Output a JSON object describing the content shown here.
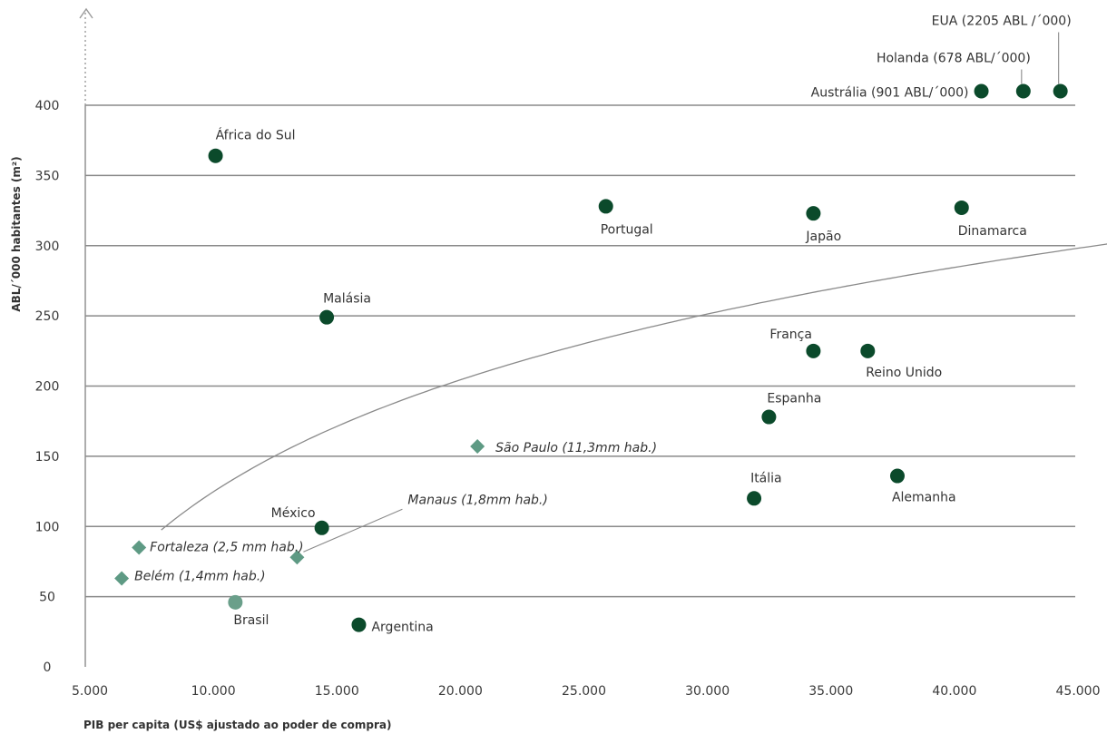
{
  "chart_data": {
    "type": "scatter",
    "xlabel": "PIB per capita (US$ ajustado ao poder de compra)",
    "ylabel": "ABL/´000 habitantes (m²)",
    "xlim": [
      5000,
      45000
    ],
    "ylim": [
      0,
      400
    ],
    "x_ticks": [
      "5.000",
      "10.000",
      "15.000",
      "20.000",
      "25.000",
      "30.000",
      "35.000",
      "40.000",
      "45.000"
    ],
    "y_ticks": [
      "0",
      "50",
      "100",
      "150",
      "200",
      "250",
      "300",
      "350",
      "400"
    ],
    "grid": "horizontal",
    "colors": {
      "country": "#0b4a2b",
      "city": "#5e9a84",
      "brasil": "#6a9f8a",
      "grid": "#8a8a8a"
    },
    "series": [
      {
        "marker": "circle",
        "points": [
          {
            "label": "África do Sul",
            "x": 10200,
            "y": 364
          },
          {
            "label": "Portugal",
            "x": 26000,
            "y": 328
          },
          {
            "label": "Japão",
            "x": 34400,
            "y": 323
          },
          {
            "label": "Dinamarca",
            "x": 40400,
            "y": 327
          },
          {
            "label": "Malásia",
            "x": 14700,
            "y": 249
          },
          {
            "label": "França",
            "x": 34400,
            "y": 225
          },
          {
            "label": "Reino Unido",
            "x": 36600,
            "y": 225
          },
          {
            "label": "Espanha",
            "x": 32600,
            "y": 178
          },
          {
            "label": "Itália",
            "x": 32000,
            "y": 120
          },
          {
            "label": "Alemanha",
            "x": 37800,
            "y": 136
          },
          {
            "label": "México",
            "x": 14500,
            "y": 99
          },
          {
            "label": "Argentina",
            "x": 16000,
            "y": 30
          },
          {
            "label": "Brasil",
            "x": 11000,
            "y": 46
          },
          {
            "label": "Austrália (901 ABL/´000)",
            "x": 41200,
            "y": 410
          },
          {
            "label": "Holanda (678 ABL/´000)",
            "x": 42900,
            "y": 410
          },
          {
            "label": "EUA (2205 ABL /´000)",
            "x": 44400,
            "y": 410
          }
        ]
      },
      {
        "marker": "diamond",
        "points": [
          {
            "label": "São Paulo (11,3mm hab.)",
            "x": 20800,
            "y": 157
          },
          {
            "label": "Manaus (1,8mm hab.)",
            "x": 13500,
            "y": 78
          },
          {
            "label": "Fortaleza (2,5 mm hab.)",
            "x": 7100,
            "y": 85
          },
          {
            "label": "Belém (1,4mm hab.)",
            "x": 6400,
            "y": 63
          }
        ]
      }
    ],
    "trendline": "logarithmic"
  }
}
